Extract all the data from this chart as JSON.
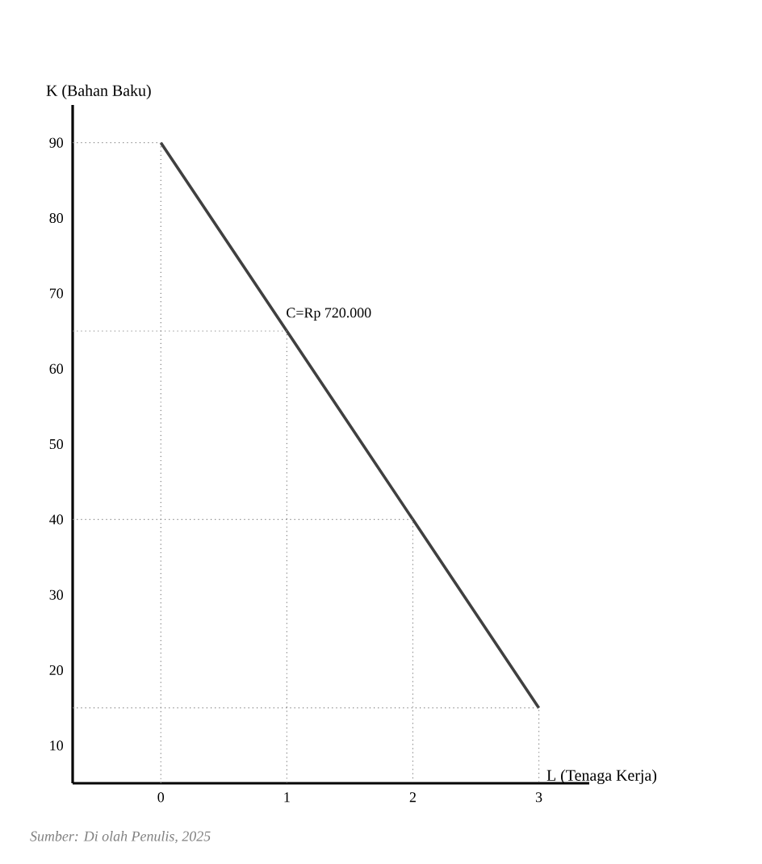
{
  "chart_data": {
    "type": "line",
    "xlabel": "L (Tenaga Kerja)",
    "ylabel": "K (Bahan Baku)",
    "xlim": [
      -0.7,
      3.4
    ],
    "ylim": [
      5,
      95
    ],
    "xticks": [
      0,
      1,
      2,
      3
    ],
    "yticks": [
      10,
      20,
      30,
      40,
      50,
      60,
      70,
      80,
      90
    ],
    "marker": "none",
    "series": [
      {
        "color": "#404040",
        "x": [
          0,
          1,
          2,
          3
        ],
        "values": [
          90,
          65,
          40,
          15
        ]
      },
      {
        "color": "#808080",
        "line_style": "dotted",
        "x": [
          -0.7,
          0,
          0
        ],
        "values": [
          90,
          90,
          5
        ]
      },
      {
        "color": "#808080",
        "line_style": "dotted",
        "x": [
          -0.7,
          1,
          1
        ],
        "values": [
          65,
          65,
          5
        ]
      },
      {
        "color": "#808080",
        "line_style": "dotted",
        "x": [
          -0.7,
          2,
          2
        ],
        "values": [
          40,
          40,
          5
        ]
      },
      {
        "color": "#808080",
        "line_style": "dotted",
        "x": [
          -0.7,
          3,
          3
        ],
        "values": [
          15,
          15,
          5
        ]
      }
    ],
    "annotations": [
      {
        "text": "C=Rp 720.000",
        "x": 1,
        "y": 65
      },
      "Sumber: Di olah Penulis, 2025"
    ]
  }
}
